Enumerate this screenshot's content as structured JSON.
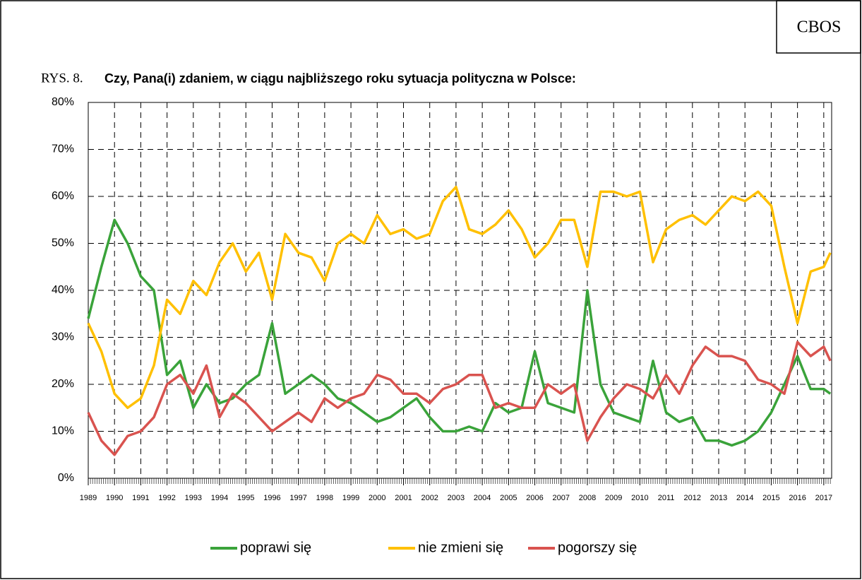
{
  "chart_data": {
    "type": "line",
    "source": "CBOS",
    "figure_label": "RYS. 8.",
    "title": "Czy, Pana(i) zdaniem, w ciągu najbliższego roku sytuacja polityczna  w Polsce:",
    "x": [
      1989,
      1989.5,
      1990,
      1990.5,
      1991,
      1991.5,
      1992,
      1992.5,
      1993,
      1993.5,
      1994,
      1994.5,
      1995,
      1995.5,
      1996,
      1996.5,
      1997,
      1997.5,
      1998,
      1998.5,
      1999,
      1999.5,
      2000,
      2000.5,
      2001,
      2001.5,
      2002,
      2002.5,
      2003,
      2003.5,
      2004,
      2004.5,
      2005,
      2005.5,
      2006,
      2006.5,
      2007,
      2007.5,
      2008,
      2008.5,
      2009,
      2009.5,
      2010,
      2010.5,
      2011,
      2011.5,
      2012,
      2012.5,
      2013,
      2013.5,
      2014,
      2014.5,
      2015,
      2015.5,
      2016,
      2016.5,
      2017,
      2017.25
    ],
    "series": [
      {
        "name": "poprawi się",
        "color": "#3aa33a",
        "values": [
          34,
          45,
          55,
          50,
          43,
          40,
          22,
          25,
          15,
          20,
          16,
          17,
          20,
          22,
          33,
          18,
          20,
          22,
          20,
          17,
          16,
          14,
          12,
          13,
          15,
          17,
          13,
          10,
          10,
          11,
          10,
          16,
          14,
          15,
          27,
          16,
          15,
          14,
          40,
          20,
          14,
          13,
          12,
          25,
          14,
          12,
          13,
          8,
          8,
          7,
          8,
          10,
          14,
          20,
          26,
          19,
          19,
          18
        ]
      },
      {
        "name": "nie zmieni się",
        "color": "#ffc000",
        "values": [
          33,
          27,
          18,
          15,
          17,
          24,
          38,
          35,
          42,
          39,
          46,
          50,
          44,
          48,
          38,
          52,
          48,
          47,
          42,
          50,
          52,
          50,
          56,
          52,
          53,
          51,
          52,
          59,
          62,
          53,
          52,
          54,
          57,
          53,
          47,
          50,
          55,
          55,
          45,
          61,
          61,
          60,
          61,
          46,
          53,
          55,
          56,
          54,
          57,
          60,
          59,
          61,
          58,
          45,
          33,
          44,
          45,
          48
        ]
      },
      {
        "name": "pogorszy się",
        "color": "#d9534f",
        "values": [
          14,
          8,
          5,
          9,
          10,
          13,
          20,
          22,
          18,
          24,
          13,
          18,
          16,
          13,
          10,
          12,
          14,
          12,
          17,
          15,
          17,
          18,
          22,
          21,
          18,
          18,
          16,
          19,
          20,
          22,
          22,
          15,
          16,
          15,
          15,
          20,
          18,
          20,
          8,
          13,
          17,
          20,
          19,
          17,
          22,
          18,
          24,
          28,
          26,
          26,
          25,
          21,
          20,
          18,
          29,
          26,
          28,
          25
        ]
      }
    ],
    "xlim": [
      1989,
      2017.3
    ],
    "xticks": [
      1989,
      1990,
      1991,
      1992,
      1993,
      1994,
      1995,
      1996,
      1997,
      1998,
      1999,
      2000,
      2001,
      2002,
      2003,
      2004,
      2005,
      2006,
      2007,
      2008,
      2009,
      2010,
      2011,
      2012,
      2013,
      2014,
      2015,
      2016,
      2017
    ],
    "ylim": [
      0,
      80
    ],
    "yticks": [
      {
        "value": 0,
        "label": "0%"
      },
      {
        "value": 10,
        "label": "10%"
      },
      {
        "value": 20,
        "label": "20%"
      },
      {
        "value": 30,
        "label": "30%"
      },
      {
        "value": 40,
        "label": "40%"
      },
      {
        "value": 50,
        "label": "50%"
      },
      {
        "value": 60,
        "label": "60%"
      },
      {
        "value": 70,
        "label": "70%"
      },
      {
        "value": 80,
        "label": "80%"
      }
    ],
    "grid": true
  }
}
